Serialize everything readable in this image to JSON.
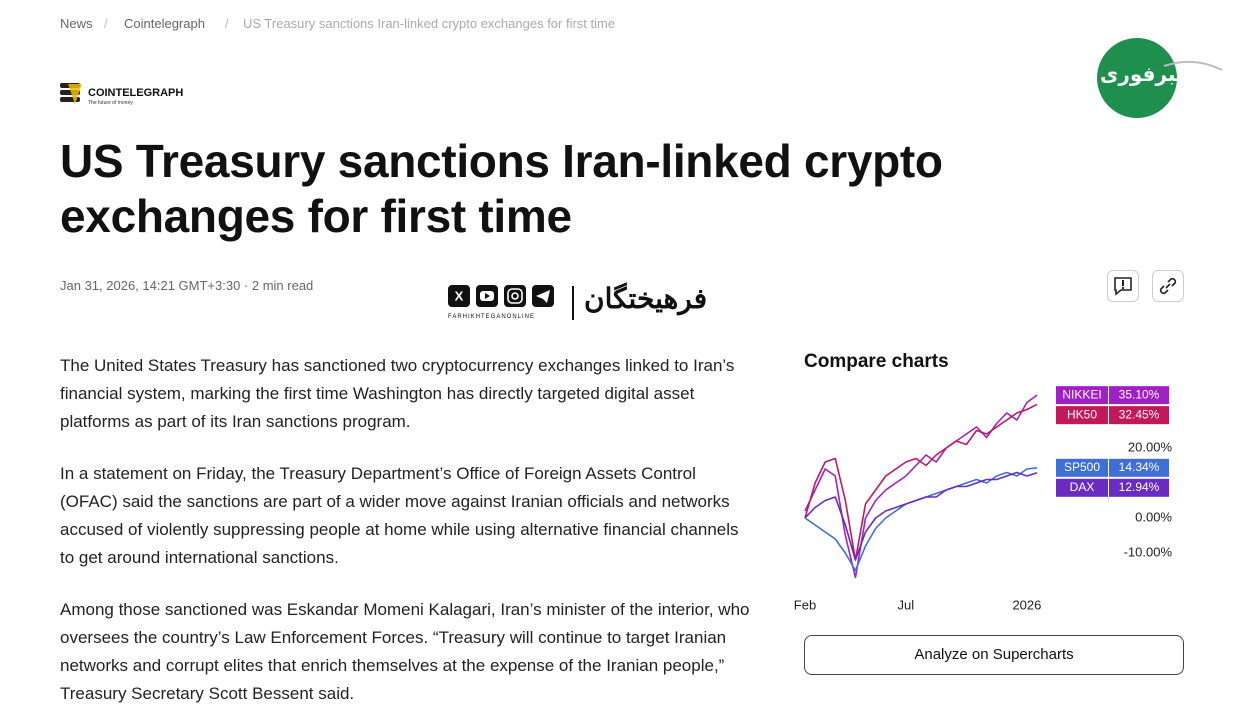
{
  "breadcrumb": [
    "News",
    "Cointelegraph",
    "US Treasury sanctions Iran-linked crypto exchanges for first time"
  ],
  "publisher": {
    "name": "COINTELEGRAPH",
    "tagline": "The future of money"
  },
  "article": {
    "title": "US Treasury sanctions Iran-linked crypto exchanges for first time",
    "meta": "Jan 31, 2026, 14:21 GMT+3:30 · 2 min read",
    "paragraphs": [
      "The United States Treasury has sanctioned two cryptocurrency exchanges linked to Iran’s financial system, marking the first time Washington has directly targeted digital asset platforms as part of its Iran sanctions program.",
      "In a statement on Friday, the Treasury Department’s Office of Foreign Assets Control (OFAC) said the sanctions are part of a wider move against Iranian officials and networks accused of violently suppressing people at home while using alternative financial channels to get around international sanctions.",
      "Among those sanctioned was Eskandar Momeni Kalagari, Iran’s minister of the interior, who oversees the country’s Law Enforcement Forces. “Treasury will continue to target Iranian networks and corrupt elites that enrich themselves at the expense of the Iranian people,” Treasury Secretary Scott Bessent said."
    ]
  },
  "watermark": {
    "name": "فرهیختگان",
    "handle": "FARHIKHTEGANONLINE"
  },
  "corner_logo": "خبرفوری",
  "sidebar": {
    "heading": "Compare charts",
    "button": "Analyze on Supercharts"
  },
  "chart_data": {
    "type": "line",
    "categories": [
      "Feb",
      null,
      null,
      null,
      null,
      null,
      null,
      null,
      null,
      null,
      "Jul",
      null,
      null,
      null,
      null,
      null,
      null,
      null,
      null,
      null,
      null,
      null,
      "2026",
      null
    ],
    "series": [
      {
        "name": "NIKKEI",
        "color": "#a020c8",
        "values": [
          2,
          8,
          14,
          12,
          -5,
          -17,
          0,
          5,
          8,
          10,
          12,
          15,
          18,
          16,
          20,
          22,
          24,
          26,
          23,
          27,
          30,
          28,
          33,
          35.1
        ],
        "value_labels": [
          null,
          null,
          null,
          null,
          null,
          null,
          null,
          null,
          null,
          null,
          null,
          null,
          null,
          null,
          null,
          null,
          null,
          null,
          null,
          null,
          null,
          null,
          null,
          "35.10%"
        ]
      },
      {
        "name": "HK50",
        "color": "#c2185b",
        "values": [
          0,
          10,
          16,
          17,
          5,
          -12,
          4,
          8,
          12,
          14,
          16,
          17,
          15,
          18,
          20,
          22,
          21,
          25,
          24,
          26,
          28,
          30,
          31,
          32.45
        ],
        "value_labels": [
          null,
          null,
          null,
          null,
          null,
          null,
          null,
          null,
          null,
          null,
          null,
          null,
          null,
          null,
          null,
          null,
          null,
          null,
          null,
          null,
          null,
          null,
          null,
          "32.45%"
        ]
      },
      {
        "name": "SP500",
        "color": "#3d6fd6",
        "values": [
          0,
          -2,
          -4,
          -6,
          -10,
          -15,
          -8,
          -3,
          0,
          2,
          4,
          5,
          6,
          7,
          8,
          9,
          10,
          11,
          10,
          12,
          13,
          12,
          14,
          14.34
        ],
        "value_labels": [
          null,
          null,
          null,
          null,
          null,
          null,
          null,
          null,
          null,
          null,
          null,
          null,
          null,
          null,
          null,
          null,
          null,
          null,
          null,
          null,
          null,
          null,
          null,
          "14.34%"
        ]
      },
      {
        "name": "DAX",
        "color": "#6a2bc2",
        "values": [
          0,
          3,
          5,
          6,
          -2,
          -12,
          -4,
          0,
          2,
          3,
          4,
          5,
          6,
          6,
          8,
          9,
          9,
          10,
          11,
          11,
          12,
          13,
          12,
          12.94
        ],
        "value_labels": [
          null,
          null,
          null,
          null,
          null,
          null,
          null,
          null,
          null,
          null,
          null,
          null,
          null,
          null,
          null,
          null,
          null,
          null,
          null,
          null,
          null,
          null,
          null,
          "12.94%"
        ]
      }
    ],
    "ylim": [
      -19,
      38
    ],
    "yticks": [
      {
        "value": 20,
        "label": "20.00%"
      },
      {
        "value": 0,
        "label": "0.00%"
      },
      {
        "value": -10,
        "label": "-10.00%"
      }
    ]
  }
}
